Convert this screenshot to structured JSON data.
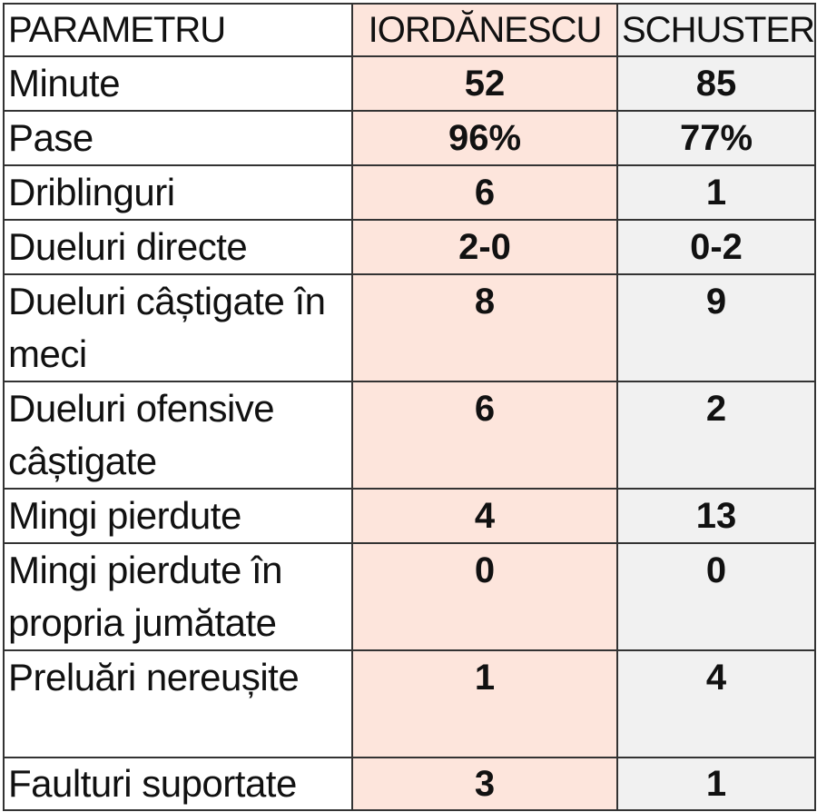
{
  "header": {
    "parameter": "PARAMETRU",
    "player1": "IORDĂNESCU",
    "player2": "SCHUSTER"
  },
  "colors": {
    "player1_column": "#fde5dc",
    "player2_column": "#f1f1f1",
    "border": "#333333"
  },
  "rows": [
    {
      "parameter": "Minute",
      "player1": "52",
      "player2": "85"
    },
    {
      "parameter": "Pase",
      "player1": "96%",
      "player2": "77%"
    },
    {
      "parameter": "Driblinguri",
      "player1": "6",
      "player2": "1"
    },
    {
      "parameter": "Dueluri directe",
      "player1": "2-0",
      "player2": "0-2"
    },
    {
      "parameter": "Dueluri câștigate în meci",
      "player1": "8",
      "player2": "9"
    },
    {
      "parameter": "Dueluri ofensive câștigate",
      "player1": "6",
      "player2": "2"
    },
    {
      "parameter": "Mingi pierdute",
      "player1": "4",
      "player2": "13"
    },
    {
      "parameter": "Mingi pierdute în propria jumătate",
      "player1": "0",
      "player2": "0"
    },
    {
      "parameter": "Preluări nereușite",
      "player1": "1",
      "player2": "4"
    },
    {
      "parameter": "Faulturi suportate",
      "player1": "3",
      "player2": "1"
    }
  ]
}
